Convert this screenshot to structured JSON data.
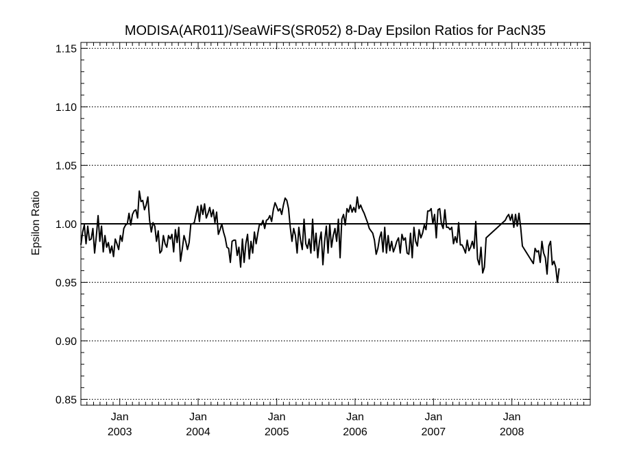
{
  "chart_data": {
    "type": "line",
    "title": "MODISA(AR011)/SeaWiFS(SR052) 8-Day Epsilon Ratios for PacN35",
    "xlabel": "",
    "ylabel": "Epsilon Ratio",
    "xlim": [
      "2002-07-04",
      "2008-12-31"
    ],
    "ylim": [
      0.845,
      1.155
    ],
    "grid": "dotted horizontal lines at labeled y ticks",
    "reference_line": 1.0,
    "y_ticks": [
      "0.85",
      "0.90",
      "0.95",
      "1.00",
      "1.05",
      "1.10",
      "1.15"
    ],
    "y_tick_values": [
      0.85,
      0.9,
      0.95,
      1.0,
      1.05,
      1.1,
      1.15
    ],
    "x_ticks": [
      {
        "date": "2003-01-01",
        "month": "Jan",
        "year": "2003"
      },
      {
        "date": "2004-01-01",
        "month": "Jan",
        "year": "2004"
      },
      {
        "date": "2005-01-01",
        "month": "Jan",
        "year": "2005"
      },
      {
        "date": "2006-01-01",
        "month": "Jan",
        "year": "2006"
      },
      {
        "date": "2007-01-01",
        "month": "Jan",
        "year": "2007"
      },
      {
        "date": "2008-01-01",
        "month": "Jan",
        "year": "2008"
      }
    ],
    "series": [
      {
        "points": [
          [
            "2002-07-04",
            0.982
          ],
          [
            "2002-07-12",
            0.993
          ],
          [
            "2002-07-20",
            0.999
          ],
          [
            "2002-07-28",
            0.983
          ],
          [
            "2002-08-05",
            0.998
          ],
          [
            "2002-08-13",
            0.986
          ],
          [
            "2002-08-21",
            0.987
          ],
          [
            "2002-08-29",
            0.996
          ],
          [
            "2002-09-06",
            0.975
          ],
          [
            "2002-09-14",
            0.99
          ],
          [
            "2002-09-22",
            1.007
          ],
          [
            "2002-09-30",
            0.985
          ],
          [
            "2002-10-08",
            0.998
          ],
          [
            "2002-10-16",
            0.976
          ],
          [
            "2002-10-24",
            0.99
          ],
          [
            "2002-11-01",
            0.98
          ],
          [
            "2002-11-09",
            0.984
          ],
          [
            "2002-11-17",
            0.975
          ],
          [
            "2002-11-25",
            0.981
          ],
          [
            "2002-12-03",
            0.972
          ],
          [
            "2002-12-11",
            0.987
          ],
          [
            "2002-12-19",
            0.983
          ],
          [
            "2002-12-27",
            0.978
          ],
          [
            "2003-01-04",
            0.99
          ],
          [
            "2003-01-12",
            0.985
          ],
          [
            "2003-01-20",
            0.996
          ],
          [
            "2003-01-28",
            0.999
          ],
          [
            "2003-02-05",
            1.0
          ],
          [
            "2003-02-13",
            1.009
          ],
          [
            "2003-02-21",
            0.999
          ],
          [
            "2003-03-01",
            1.008
          ],
          [
            "2003-03-09",
            1.011
          ],
          [
            "2003-03-17",
            1.012
          ],
          [
            "2003-03-25",
            1.005
          ],
          [
            "2003-04-02",
            1.028
          ],
          [
            "2003-04-10",
            1.019
          ],
          [
            "2003-04-18",
            1.02
          ],
          [
            "2003-04-26",
            1.012
          ],
          [
            "2003-05-04",
            1.016
          ],
          [
            "2003-05-12",
            1.023
          ],
          [
            "2003-05-20",
            1.003
          ],
          [
            "2003-05-28",
            0.993
          ],
          [
            "2003-06-05",
            1.001
          ],
          [
            "2003-06-13",
            0.998
          ],
          [
            "2003-06-21",
            0.985
          ],
          [
            "2003-06-29",
            0.994
          ],
          [
            "2003-07-07",
            0.975
          ],
          [
            "2003-07-15",
            0.977
          ],
          [
            "2003-07-23",
            0.99
          ],
          [
            "2003-07-31",
            0.983
          ],
          [
            "2003-08-08",
            0.98
          ],
          [
            "2003-08-16",
            0.99
          ],
          [
            "2003-08-24",
            0.987
          ],
          [
            "2003-09-01",
            0.991
          ],
          [
            "2003-09-09",
            0.976
          ],
          [
            "2003-09-17",
            0.995
          ],
          [
            "2003-09-25",
            0.984
          ],
          [
            "2003-10-03",
            0.997
          ],
          [
            "2003-10-11",
            0.968
          ],
          [
            "2003-10-19",
            0.978
          ],
          [
            "2003-10-27",
            0.99
          ],
          [
            "2003-11-04",
            0.985
          ],
          [
            "2003-11-12",
            0.978
          ],
          [
            "2003-11-20",
            0.984
          ],
          [
            "2003-11-28",
            1.0
          ],
          [
            "2003-12-06",
            1.0
          ],
          [
            "2003-12-14",
            1.001
          ],
          [
            "2003-12-22",
            1.008
          ],
          [
            "2003-12-30",
            1.015
          ],
          [
            "2004-01-07",
            1.002
          ],
          [
            "2004-01-15",
            1.016
          ],
          [
            "2004-01-23",
            1.008
          ],
          [
            "2004-01-31",
            1.017
          ],
          [
            "2004-02-08",
            1.005
          ],
          [
            "2004-02-16",
            1.009
          ],
          [
            "2004-02-24",
            1.014
          ],
          [
            "2004-03-03",
            1.006
          ],
          [
            "2004-03-11",
            1.012
          ],
          [
            "2004-03-19",
            1.001
          ],
          [
            "2004-03-27",
            1.01
          ],
          [
            "2004-04-04",
            0.991
          ],
          [
            "2004-04-12",
            0.995
          ],
          [
            "2004-04-20",
            1.0
          ],
          [
            "2004-04-28",
            0.993
          ],
          [
            "2004-05-06",
            0.988
          ],
          [
            "2004-05-14",
            0.98
          ],
          [
            "2004-05-22",
            0.979
          ],
          [
            "2004-05-30",
            0.967
          ],
          [
            "2004-06-07",
            0.985
          ],
          [
            "2004-06-15",
            0.986
          ],
          [
            "2004-06-23",
            0.986
          ],
          [
            "2004-07-01",
            0.973
          ],
          [
            "2004-07-09",
            0.98
          ],
          [
            "2004-07-17",
            0.963
          ],
          [
            "2004-07-25",
            0.987
          ],
          [
            "2004-08-02",
            0.967
          ],
          [
            "2004-08-10",
            0.983
          ],
          [
            "2004-08-18",
            0.991
          ],
          [
            "2004-08-26",
            0.97
          ],
          [
            "2004-09-03",
            0.985
          ],
          [
            "2004-09-11",
            0.975
          ],
          [
            "2004-09-19",
            0.993
          ],
          [
            "2004-09-27",
            0.983
          ],
          [
            "2004-10-05",
            0.992
          ],
          [
            "2004-10-13",
            1.0
          ],
          [
            "2004-10-21",
            0.999
          ],
          [
            "2004-10-29",
            1.003
          ],
          [
            "2004-11-06",
            0.996
          ],
          [
            "2004-11-14",
            1.003
          ],
          [
            "2004-11-22",
            1.004
          ],
          [
            "2004-11-30",
            1.007
          ],
          [
            "2004-12-08",
            1.002
          ],
          [
            "2004-12-16",
            1.012
          ],
          [
            "2004-12-24",
            1.018
          ],
          [
            "2004-12-31",
            1.015
          ],
          [
            "2005-01-08",
            1.011
          ],
          [
            "2005-01-16",
            1.013
          ],
          [
            "2005-01-24",
            1.008
          ],
          [
            "2005-02-01",
            1.016
          ],
          [
            "2005-02-09",
            1.022
          ],
          [
            "2005-02-17",
            1.02
          ],
          [
            "2005-02-25",
            1.013
          ],
          [
            "2005-03-05",
            0.997
          ],
          [
            "2005-03-13",
            0.985
          ],
          [
            "2005-03-21",
            0.996
          ],
          [
            "2005-03-29",
            0.99
          ],
          [
            "2005-04-06",
            0.975
          ],
          [
            "2005-04-14",
            0.997
          ],
          [
            "2005-04-22",
            0.986
          ],
          [
            "2005-04-30",
            0.978
          ],
          [
            "2005-05-08",
            1.004
          ],
          [
            "2005-05-16",
            0.983
          ],
          [
            "2005-05-24",
            0.979
          ],
          [
            "2005-06-01",
            0.987
          ],
          [
            "2005-06-09",
            0.975
          ],
          [
            "2005-06-17",
            1.004
          ],
          [
            "2005-06-25",
            0.977
          ],
          [
            "2005-07-03",
            0.992
          ],
          [
            "2005-07-11",
            0.971
          ],
          [
            "2005-07-19",
            0.985
          ],
          [
            "2005-07-27",
            0.993
          ],
          [
            "2005-08-04",
            0.965
          ],
          [
            "2005-08-12",
            0.985
          ],
          [
            "2005-08-20",
            0.998
          ],
          [
            "2005-08-28",
            0.975
          ],
          [
            "2005-09-05",
            1.0
          ],
          [
            "2005-09-13",
            0.98
          ],
          [
            "2005-09-21",
            0.99
          ],
          [
            "2005-09-29",
            0.996
          ],
          [
            "2005-10-07",
            0.985
          ],
          [
            "2005-10-15",
            1.004
          ],
          [
            "2005-10-23",
            0.971
          ],
          [
            "2005-10-31",
            1.004
          ],
          [
            "2005-11-08",
            1.008
          ],
          [
            "2005-11-16",
            0.999
          ],
          [
            "2005-11-24",
            1.013
          ],
          [
            "2005-12-02",
            1.01
          ],
          [
            "2005-12-10",
            1.016
          ],
          [
            "2005-12-18",
            1.01
          ],
          [
            "2005-12-26",
            1.014
          ],
          [
            "2006-01-03",
            1.01
          ],
          [
            "2006-01-11",
            1.023
          ],
          [
            "2006-01-19",
            1.013
          ],
          [
            "2006-01-27",
            1.016
          ],
          [
            "2006-02-04",
            1.012
          ],
          [
            "2006-02-12",
            1.009
          ],
          [
            "2006-02-20",
            1.005
          ],
          [
            "2006-02-28",
            1.001
          ],
          [
            "2006-03-08",
            0.996
          ],
          [
            "2006-03-16",
            0.994
          ],
          [
            "2006-03-24",
            0.992
          ],
          [
            "2006-04-01",
            0.986
          ],
          [
            "2006-04-09",
            0.974
          ],
          [
            "2006-04-17",
            0.979
          ],
          [
            "2006-04-25",
            0.988
          ],
          [
            "2006-05-03",
            0.993
          ],
          [
            "2006-05-11",
            0.976
          ],
          [
            "2006-05-19",
            0.997
          ],
          [
            "2006-05-27",
            0.975
          ],
          [
            "2006-06-04",
            0.99
          ],
          [
            "2006-06-12",
            0.977
          ],
          [
            "2006-06-20",
            0.985
          ],
          [
            "2006-06-28",
            0.976
          ],
          [
            "2006-07-06",
            0.98
          ],
          [
            "2006-07-14",
            0.985
          ],
          [
            "2006-07-22",
            0.988
          ],
          [
            "2006-07-30",
            0.975
          ],
          [
            "2006-08-07",
            0.991
          ],
          [
            "2006-08-15",
            0.986
          ],
          [
            "2006-08-23",
            0.988
          ],
          [
            "2006-08-31",
            0.975
          ],
          [
            "2006-09-08",
            0.974
          ],
          [
            "2006-09-16",
            0.992
          ],
          [
            "2006-09-24",
            0.971
          ],
          [
            "2006-10-02",
            0.997
          ],
          [
            "2006-10-10",
            0.985
          ],
          [
            "2006-10-18",
            0.981
          ],
          [
            "2006-10-26",
            0.995
          ],
          [
            "2006-11-03",
            0.988
          ],
          [
            "2006-11-11",
            0.992
          ],
          [
            "2006-11-19",
            0.999
          ],
          [
            "2006-11-27",
            0.995
          ],
          [
            "2006-12-05",
            1.011
          ],
          [
            "2006-12-13",
            1.011
          ],
          [
            "2006-12-21",
            1.013
          ],
          [
            "2006-12-29",
            1.0
          ],
          [
            "2007-01-06",
            1.008
          ],
          [
            "2007-01-14",
            0.988
          ],
          [
            "2007-01-22",
            1.012
          ],
          [
            "2007-01-30",
            1.013
          ],
          [
            "2007-02-07",
            1.0
          ],
          [
            "2007-02-15",
            0.996
          ],
          [
            "2007-02-23",
            1.012
          ],
          [
            "2007-03-03",
            0.997
          ],
          [
            "2007-03-11",
            0.997
          ],
          [
            "2007-03-19",
            0.995
          ],
          [
            "2007-03-27",
            0.997
          ],
          [
            "2007-04-04",
            0.983
          ],
          [
            "2007-04-12",
            0.989
          ],
          [
            "2007-04-20",
            0.984
          ],
          [
            "2007-04-28",
            1.001
          ],
          [
            "2007-05-06",
            0.982
          ],
          [
            "2007-05-14",
            0.982
          ],
          [
            "2007-05-22",
            0.979
          ],
          [
            "2007-05-30",
            0.975
          ],
          [
            "2007-06-07",
            0.986
          ],
          [
            "2007-06-15",
            0.977
          ],
          [
            "2007-06-23",
            0.98
          ],
          [
            "2007-07-01",
            0.985
          ],
          [
            "2007-07-09",
            0.979
          ],
          [
            "2007-07-17",
            1.002
          ],
          [
            "2007-07-25",
            0.97
          ],
          [
            "2007-08-02",
            0.965
          ],
          [
            "2007-08-10",
            0.98
          ],
          [
            "2007-08-18",
            0.958
          ],
          [
            "2007-08-26",
            0.963
          ],
          [
            "2007-09-03",
            0.988
          ],
          [
            "2007-12-01",
            1.003
          ],
          [
            "2007-12-09",
            1.006
          ],
          [
            "2007-12-17",
            1.008
          ],
          [
            "2007-12-25",
            1.003
          ],
          [
            "2008-01-02",
            1.008
          ],
          [
            "2008-01-10",
            0.997
          ],
          [
            "2008-01-18",
            1.008
          ],
          [
            "2008-01-26",
            0.998
          ],
          [
            "2008-02-03",
            1.009
          ],
          [
            "2008-02-11",
            0.997
          ],
          [
            "2008-02-19",
            0.981
          ],
          [
            "2008-04-10",
            0.966
          ],
          [
            "2008-04-18",
            0.979
          ],
          [
            "2008-04-26",
            0.976
          ],
          [
            "2008-05-04",
            0.977
          ],
          [
            "2008-05-12",
            0.967
          ],
          [
            "2008-05-20",
            0.985
          ],
          [
            "2008-05-28",
            0.975
          ],
          [
            "2008-06-05",
            0.971
          ],
          [
            "2008-06-13",
            0.957
          ],
          [
            "2008-06-21",
            0.981
          ],
          [
            "2008-06-29",
            0.985
          ],
          [
            "2008-07-07",
            0.965
          ],
          [
            "2008-07-15",
            0.968
          ],
          [
            "2008-07-23",
            0.963
          ],
          [
            "2008-07-31",
            0.95
          ],
          [
            "2008-08-08",
            0.962
          ]
        ]
      }
    ]
  }
}
